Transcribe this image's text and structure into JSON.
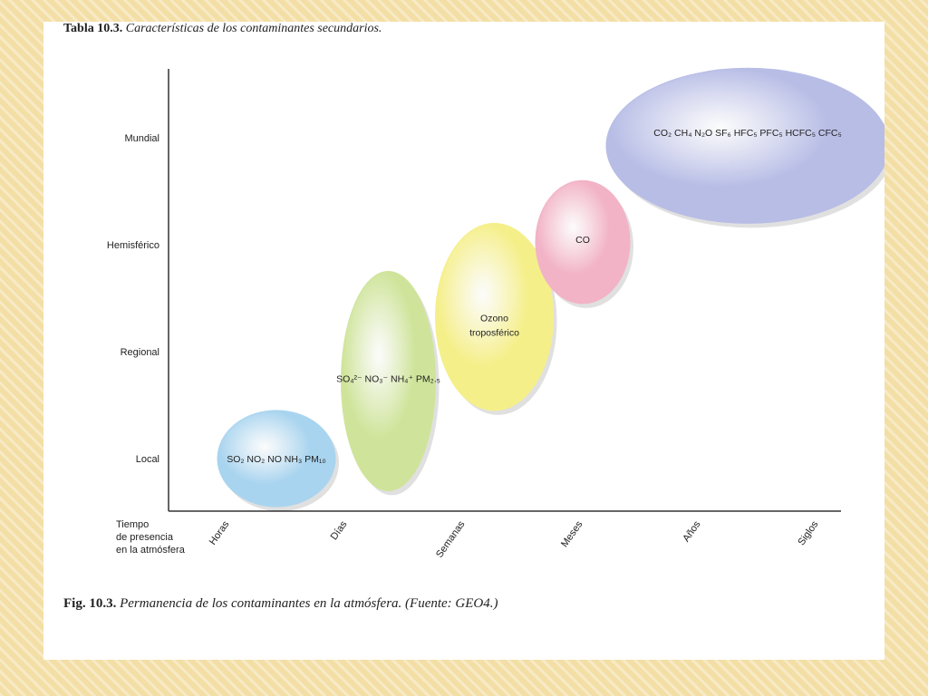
{
  "slide": {
    "table_caption_label": "Tabla 10.3.",
    "table_caption_text": "Características de los contaminantes secundarios.",
    "figure_caption_label": "Fig. 10.3.",
    "figure_caption_text": "Permanencia de los contaminantes en la atmósfera. (Fuente: GEO4.)"
  },
  "colors": {
    "background": "#f3dfa6",
    "blue": "#a9d4ef",
    "green": "#cfe49a",
    "yellow": "#f5ef8a",
    "pink": "#f2b3c6",
    "purple": "#b8bde6"
  },
  "chart_data": {
    "type": "bubble",
    "title": "",
    "x_axis_title": [
      "Tiempo",
      "de presencia",
      "en la atmósfera"
    ],
    "x_categories": [
      "Horas",
      "Días",
      "Semanas",
      "Meses",
      "Años",
      "Siglos"
    ],
    "y_categories": [
      "Local",
      "Regional",
      "Hemisférico",
      "Mundial"
    ],
    "grid": false,
    "bubbles": [
      {
        "name": "local",
        "label": "SO₂ NO₂ NO NH₃ PM₁₀",
        "x": 0.4,
        "y": 0.0,
        "x_range": [
          -0.1,
          0.9
        ],
        "y_range": [
          -0.45,
          0.45
        ],
        "color": "#a9d4ef"
      },
      {
        "name": "regional",
        "label": "SO₄²⁻ NO₃⁻ NH₄⁺ PM₂.₅",
        "x": 1.35,
        "y": 0.75,
        "x_range": [
          0.95,
          1.75
        ],
        "y_range": [
          -0.3,
          1.75
        ],
        "color": "#cfe49a"
      },
      {
        "name": "ozono",
        "label_lines": [
          "Ozono",
          "troposférico"
        ],
        "x": 2.25,
        "y": 1.25,
        "x_range": [
          1.75,
          2.75
        ],
        "y_range": [
          0.45,
          2.2
        ],
        "color": "#f5ef8a"
      },
      {
        "name": "co",
        "label": "CO",
        "x": 3.0,
        "y": 2.05,
        "x_range": [
          2.6,
          3.4
        ],
        "y_range": [
          1.45,
          2.6
        ],
        "color": "#f2b3c6"
      },
      {
        "name": "mundial",
        "label": "CO₂ CH₄ N₂O SF₆ HFC₅ PFC₅ HCFC₅ CFC₅",
        "x": 4.4,
        "y": 3.05,
        "x_range": [
          3.2,
          5.6
        ],
        "y_range": [
          2.2,
          3.65
        ],
        "color": "#b8bde6"
      }
    ]
  }
}
